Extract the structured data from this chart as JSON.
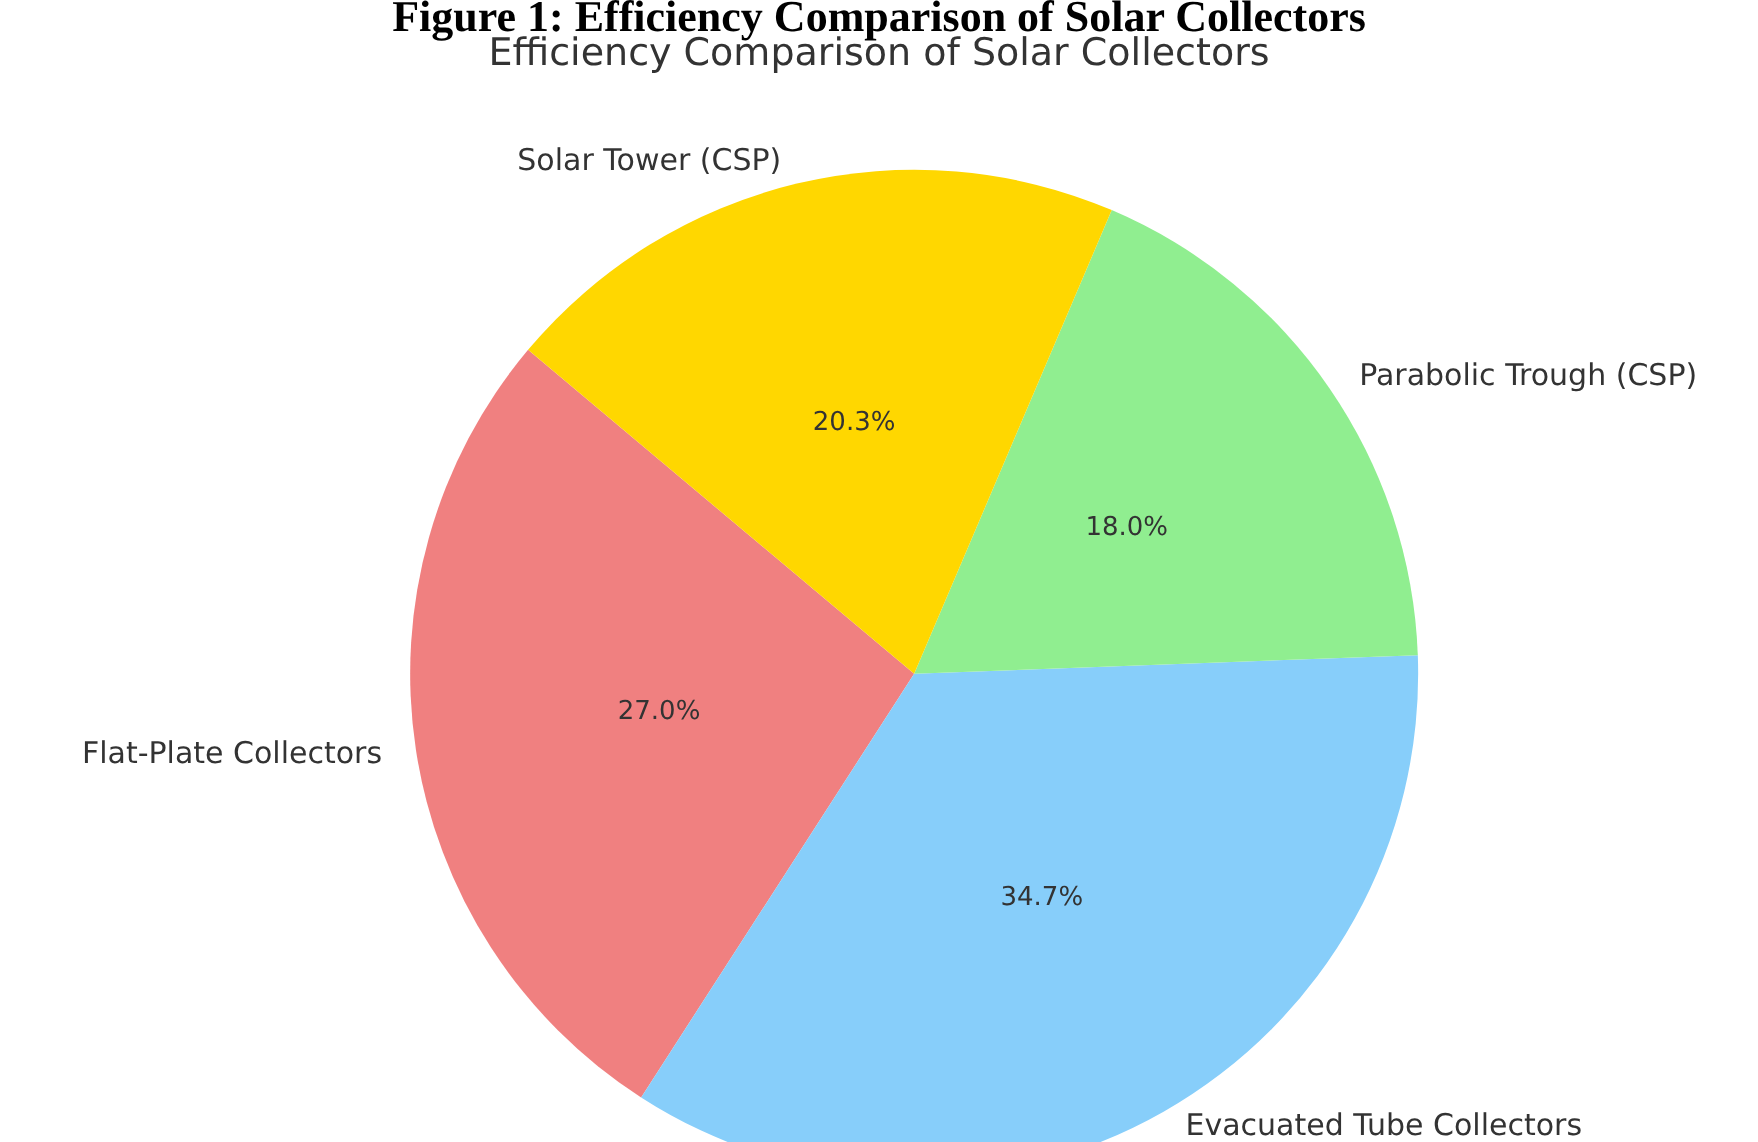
{
  "chart_data": {
    "type": "pie",
    "title": "Figure 1: Efficiency Comparison of Solar Collectors",
    "subtitle": "Efficiency Comparison of Solar Collectors",
    "categories": [
      "Flat-Plate Collectors",
      "Evacuated Tube Collectors",
      "Parabolic Trough (CSP)",
      "Solar Tower (CSP)"
    ],
    "values": [
      27.0,
      34.7,
      18.0,
      20.3
    ],
    "colors": [
      "#f08080",
      "#87cefa",
      "#90ee90",
      "#ffd700"
    ],
    "value_labels": [
      "27.0%",
      "34.7%",
      "18.0%",
      "20.3%"
    ]
  }
}
